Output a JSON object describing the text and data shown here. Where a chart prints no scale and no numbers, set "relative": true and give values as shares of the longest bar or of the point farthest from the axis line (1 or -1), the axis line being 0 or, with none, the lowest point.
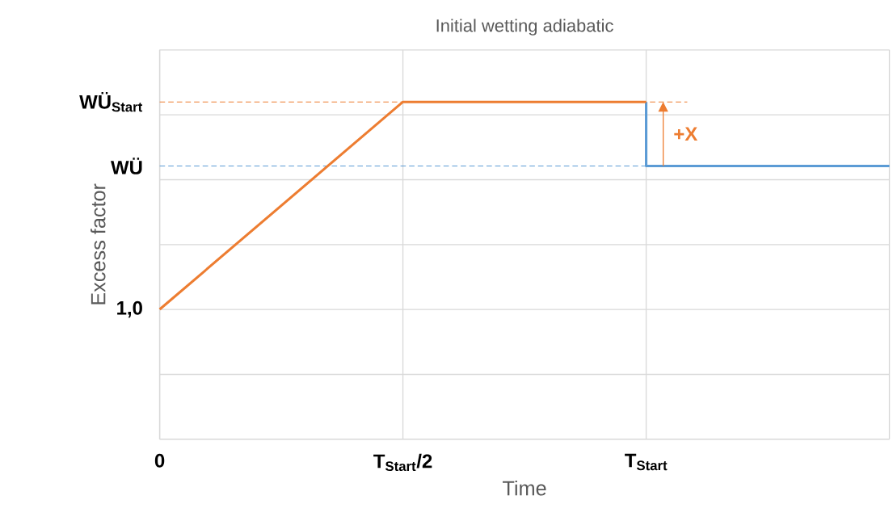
{
  "chart_data": {
    "type": "line",
    "title": "Initial wetting adiabatic",
    "xlabel": "Time",
    "ylabel": "Excess factor",
    "relative": true,
    "categories": [
      "0",
      "T$_{Start}$/2",
      "T$_{Start}$",
      null
    ],
    "series": [
      {
        "type": "step",
        "color": "#5b9bd5",
        "values": [
          null,
          null,
          1,
          0.81
        ]
      },
      {
        "color": "#ed7d31",
        "values": [
          0.385,
          1,
          1,
          null
        ]
      }
    ],
    "ref_lines": [
      {
        "axis": "y",
        "value": 1,
        "label": "WÜ$_{Start}$",
        "color": "#ed7d31",
        "line_style": "dashed"
      },
      {
        "axis": "y",
        "value": 0.81,
        "label": "WÜ",
        "color": "#5b9bd5",
        "line_style": "dashed"
      }
    ],
    "annotations": [
      {
        "text": "1,0",
        "x": "0",
        "y": 0.385
      },
      "+X"
    ],
    "grid": true
  }
}
